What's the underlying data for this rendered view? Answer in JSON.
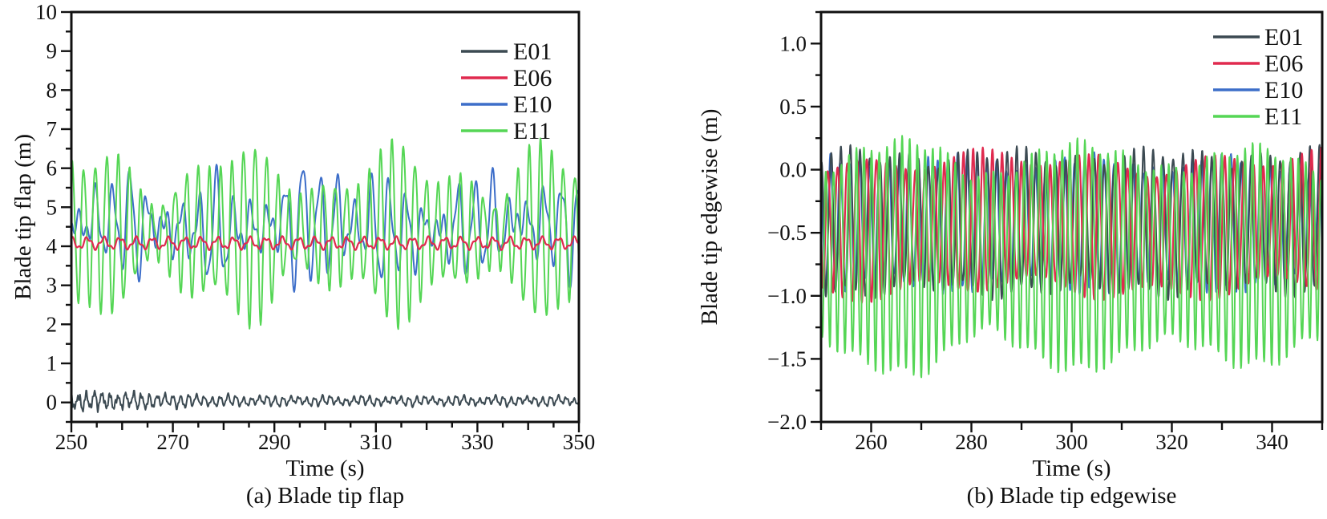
{
  "page": {
    "background": "#ffffff",
    "text_color": "#111111"
  },
  "chart_data": [
    {
      "id": "blade-tip-flap",
      "type": "line",
      "caption": "(a) Blade tip flap",
      "xlabel": "Time (s)",
      "ylabel": "Blade tip flap (m)",
      "xlim": [
        250,
        350
      ],
      "ylim": [
        -0.5,
        10
      ],
      "grid": false,
      "legend_position": "top-right-inside",
      "x_major_ticks": {
        "values": [
          250,
          270,
          290,
          310,
          330,
          350
        ],
        "labels": [
          "250",
          "270",
          "290",
          "310",
          "330",
          "350"
        ]
      },
      "x_minor": {
        "step": 5,
        "mid_step": 10
      },
      "y_major_ticks": {
        "values": [
          0,
          1,
          2,
          3,
          4,
          5,
          6,
          7,
          8,
          9,
          10
        ],
        "labels": [
          "0",
          "1",
          "2",
          "3",
          "4",
          "5",
          "6",
          "7",
          "8",
          "9",
          "10"
        ]
      },
      "y_minor": {
        "step": 0.5
      },
      "legend": {
        "entries": [
          {
            "label": "E01",
            "color": "#3c4a52"
          },
          {
            "label": "E06",
            "color": "#e02a4e"
          },
          {
            "label": "E10",
            "color": "#3d6ec9"
          },
          {
            "label": "E11",
            "color": "#55d655"
          }
        ]
      },
      "sample_step": 0.1,
      "series": [
        {
          "name": "E10",
          "color": "#3d6ec9",
          "width": 2,
          "approx": {
            "mean": 4.5,
            "min": 2.4,
            "max": 6.4,
            "period_s": 3.4
          },
          "baseline": 4.5,
          "carrier": {
            "period": 3.4,
            "phase": 2.0
          },
          "amp": {
            "base": 0.75,
            "mods": [
              {
                "amp": 0.45,
                "period": 17.3,
                "phase": 1.1
              },
              {
                "amp": 0.25,
                "period": 7.9,
                "phase": 0
              }
            ],
            "bumps": [
              {
                "amp": 0.5,
                "center": 301,
                "width": 6
              }
            ]
          },
          "extras": [
            {
              "amp": 0.28,
              "period": 1.6,
              "phase": 0.5
            },
            {
              "amp": 0.12,
              "period": 41,
              "phase": 0
            }
          ]
        },
        {
          "name": "E11",
          "color": "#55d655",
          "width": 2,
          "approx": {
            "mean": 4.35,
            "min": 1.8,
            "max": 7.2,
            "period_s": 2.2
          },
          "baseline": 4.35,
          "carrier": {
            "period": 2.25,
            "phase": 0.3
          },
          "amp": {
            "base": 1.5,
            "mods": [
              {
                "amp": 0.55,
                "period": 31,
                "phase": 0.7
              },
              {
                "amp": 0.35,
                "period": 13.7,
                "phase": 2.1
              }
            ],
            "bumps": []
          },
          "extras": [
            {
              "amp": 0.18,
              "period": 1.05,
              "phase": 1.2
            }
          ]
        },
        {
          "name": "E06",
          "color": "#e02a4e",
          "width": 2.2,
          "approx": {
            "mean": 4.1,
            "min": 3.9,
            "max": 4.3,
            "period_s": 3.2
          },
          "baseline": 4.08,
          "carrier": {
            "period": 3.2,
            "phase": 0.8
          },
          "amp": {
            "base": 0.13,
            "mods": [],
            "bumps": []
          },
          "extras": [
            {
              "amp": 0.05,
              "period": 1.25,
              "phase": 0
            }
          ]
        },
        {
          "name": "E01",
          "color": "#3c4a52",
          "width": 2,
          "approx": {
            "mean": 0.03,
            "min": -0.2,
            "max": 0.3,
            "period_s": 1.6
          },
          "baseline": 0.04,
          "carrier": {
            "period": 1.55,
            "phase": 0.3
          },
          "amp": {
            "base": 0.09,
            "mods": [
              {
                "amp": 0.02,
                "period": 9,
                "phase": 0
              }
            ],
            "bumps": [
              {
                "amp": 0.09,
                "center": 250,
                "width": 25
              }
            ]
          },
          "extras": [
            {
              "amp": 0.035,
              "period": 0.62,
              "phase": 1.0
            },
            {
              "amp": 0.03,
              "period": 6.5,
              "phase": 0
            },
            {
              "amp": 0.06,
              "period": 0.41,
              "phase": 2,
              "bump": {
                "center": 252,
                "width": 18
              }
            },
            {
              "amp": 0.05,
              "period": 0.97,
              "phase": 4,
              "bump": {
                "center": 252,
                "width": 18
              }
            }
          ]
        }
      ]
    },
    {
      "id": "blade-tip-edgewise",
      "type": "line",
      "caption": "(b) Blade tip edgewise",
      "xlabel": "Time (s)",
      "ylabel": "Blade tip edgewise (m)",
      "xlim": [
        250,
        350
      ],
      "ylim": [
        -2.0,
        1.25
      ],
      "grid": false,
      "legend_position": "top-right-inside",
      "x_major_ticks": {
        "values": [
          260,
          280,
          300,
          320,
          340
        ],
        "labels": [
          "260",
          "280",
          "300",
          "320",
          "340"
        ]
      },
      "x_minor": {
        "step": 10
      },
      "y_major_ticks": {
        "values": [
          -2.0,
          -1.5,
          -1.0,
          -0.5,
          0.0,
          0.5,
          1.0
        ],
        "labels": [
          "−2.0",
          "−1.5",
          "−1.0",
          "−0.5",
          "0.0",
          "0.5",
          "1.0"
        ]
      },
      "y_minor": {
        "step": 0.25
      },
      "legend": {
        "entries": [
          {
            "label": "E01",
            "color": "#3c4a52"
          },
          {
            "label": "E06",
            "color": "#e02a4e"
          },
          {
            "label": "E10",
            "color": "#3d6ec9"
          },
          {
            "label": "E11",
            "color": "#55d655"
          }
        ]
      },
      "sample_step": 0.07,
      "series": [
        {
          "name": "E10",
          "color": "#3d6ec9",
          "width": 2,
          "approx": {
            "mean": -0.43,
            "min": -0.95,
            "max": 0.1,
            "period_s": 1.95
          },
          "baseline": -0.43,
          "carrier": {
            "period": 1.95,
            "phase": 0.5
          },
          "amp": {
            "base": 0.48,
            "mods": [
              {
                "amp": 0.05,
                "period": 27,
                "phase": 0
              }
            ],
            "bumps": []
          },
          "extras": [
            {
              "amp": 0.04,
              "period": 0.85,
              "phase": 0
            }
          ]
        },
        {
          "name": "E01",
          "color": "#3c4a52",
          "width": 2,
          "approx": {
            "mean": -0.42,
            "min": -1.0,
            "max": 0.15,
            "period_s": 1.95
          },
          "baseline": -0.42,
          "carrier": {
            "period": 1.95,
            "phase": 0.2
          },
          "amp": {
            "base": 0.52,
            "mods": [
              {
                "amp": 0.04,
                "period": 31,
                "phase": 0
              }
            ],
            "bumps": []
          },
          "extras": [
            {
              "amp": 0.06,
              "period": 0.9,
              "phase": 0
            }
          ]
        },
        {
          "name": "E06",
          "color": "#e02a4e",
          "width": 2.2,
          "approx": {
            "mean": -0.44,
            "min": -1.05,
            "max": 0.15,
            "period_s": 1.93
          },
          "baseline": -0.44,
          "carrier": {
            "period": 1.93,
            "phase": 0.0
          },
          "amp": {
            "base": 0.5,
            "mods": [
              {
                "amp": 0.07,
                "period": 23,
                "phase": 0
              }
            ],
            "bumps": []
          },
          "extras": [
            {
              "amp": 0.05,
              "period": 0.95,
              "phase": 0.4
            }
          ]
        },
        {
          "name": "E11",
          "color": "#55d655",
          "width": 2,
          "approx": {
            "mean": -0.6,
            "min": -1.6,
            "max": 0.4,
            "period_s": 1.5,
            "deepest_at_s": 272
          },
          "baseline": -0.62,
          "pos_scale": 0.85,
          "carrier": {
            "period": 1.52,
            "phase": 0.8
          },
          "amp": {
            "base": 0.78,
            "mods": [
              {
                "amp": 0.15,
                "period": 37,
                "phase": 1.0
              }
            ],
            "bumps": [
              {
                "amp": 0.18,
                "center": 272,
                "width": 7
              },
              {
                "amp": 0.12,
                "center": 313,
                "width": 12
              }
            ]
          },
          "extras": [
            {
              "amp": 0.05,
              "period": 0.7,
              "phase": 0
            }
          ]
        }
      ]
    }
  ]
}
